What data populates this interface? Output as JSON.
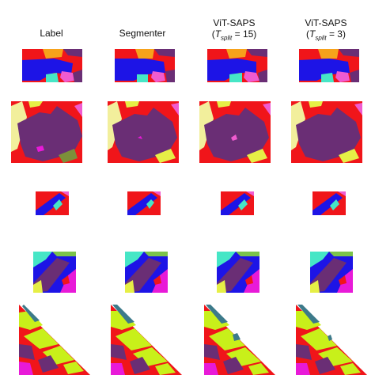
{
  "columns": [
    {
      "title": "Label",
      "subtitle_prefix": "",
      "subtitle_var": "",
      "subtitle_sub": "",
      "subtitle_value": ""
    },
    {
      "title": "Segmenter",
      "subtitle_prefix": "",
      "subtitle_var": "",
      "subtitle_sub": "",
      "subtitle_value": ""
    },
    {
      "title": "ViT-SAPS",
      "subtitle_prefix": "(",
      "subtitle_var": "T",
      "subtitle_sub": "split",
      "subtitle_value": " = 15)"
    },
    {
      "title": "ViT-SAPS",
      "subtitle_prefix": "(",
      "subtitle_var": "T",
      "subtitle_sub": "split",
      "subtitle_value": " = 3)"
    }
  ],
  "rows": [
    {
      "name": "row-1"
    },
    {
      "name": "row-2"
    },
    {
      "name": "row-3"
    },
    {
      "name": "row-4"
    },
    {
      "name": "row-5"
    }
  ],
  "colors": {
    "red": "#f0151a",
    "blue": "#1d14e6",
    "orange": "#f7a21b",
    "pink": "#f05bd0",
    "purple": "#6a2e75",
    "yellow": "#e6ef46",
    "lightyellow": "#f2ef9c",
    "cyan": "#46e6c6",
    "green": "#7bc34b",
    "lime": "#c8f01a",
    "magenta": "#e81ad8",
    "teal": "#3c7a8a",
    "olive": "#7c8f3a"
  }
}
